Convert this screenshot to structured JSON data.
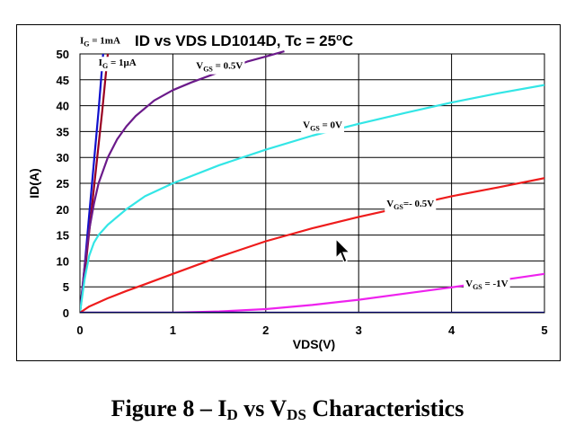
{
  "chart_data": {
    "type": "line",
    "title_parts": [
      "ID vs VDS  LD1014D, Tc = 25",
      "o",
      "C"
    ],
    "xlabel": "VDS(V)",
    "ylabel": "ID(A)",
    "xlim": [
      0,
      5
    ],
    "ylim": [
      0,
      50
    ],
    "x_ticks": [
      0,
      1,
      2,
      3,
      4,
      5
    ],
    "y_ticks": [
      0,
      5,
      10,
      15,
      20,
      25,
      30,
      35,
      40,
      45,
      50
    ],
    "grid": true,
    "series": [
      {
        "key": "ig1ma",
        "label_parts": [
          [
            "I",
            "n"
          ],
          [
            "G",
            "s"
          ],
          [
            " = 1mA",
            "n"
          ]
        ],
        "color": "#1010cc",
        "x": [
          0,
          0.05,
          0.1,
          0.15,
          0.2,
          0.25
        ],
        "y": [
          0,
          9,
          19,
          29,
          39,
          50
        ]
      },
      {
        "key": "ig1ua",
        "label_parts": [
          [
            "I",
            "n"
          ],
          [
            "G",
            "s"
          ],
          [
            " = 1μA",
            "n"
          ]
        ],
        "color": "#990022",
        "x": [
          0,
          0.06,
          0.12,
          0.18,
          0.24,
          0.3
        ],
        "y": [
          0,
          9,
          19,
          29,
          39,
          50
        ]
      },
      {
        "key": "vgs_p05",
        "label_parts": [
          [
            "V",
            "n"
          ],
          [
            "GS",
            "s"
          ],
          [
            " = 0.5V",
            "n"
          ]
        ],
        "color": "#6b1a8a",
        "x": [
          0,
          0.05,
          0.1,
          0.15,
          0.2,
          0.3,
          0.4,
          0.5,
          0.6,
          0.8,
          1.0,
          1.2,
          1.5,
          1.8,
          2.0,
          2.2
        ],
        "y": [
          0,
          9,
          16,
          21,
          25,
          30,
          33.5,
          36,
          38,
          41,
          43,
          44.5,
          46.5,
          48.5,
          49.5,
          50.5
        ]
      },
      {
        "key": "vgs_0",
        "label_parts": [
          [
            "V",
            "n"
          ],
          [
            "GS",
            "s"
          ],
          [
            " = 0V",
            "n"
          ]
        ],
        "color": "#33e6e6",
        "x": [
          0,
          0.05,
          0.1,
          0.15,
          0.2,
          0.3,
          0.4,
          0.5,
          0.7,
          1.0,
          1.5,
          2.0,
          2.5,
          3.0,
          3.5,
          4.0,
          4.5,
          5.0
        ],
        "y": [
          0,
          6.5,
          11,
          13.5,
          15,
          17,
          18.5,
          20,
          22.5,
          25,
          28.5,
          31.5,
          34.2,
          36.5,
          38.6,
          40.6,
          42.4,
          44
        ]
      },
      {
        "key": "vgs_m05",
        "label_parts": [
          [
            "V",
            "n"
          ],
          [
            "GS",
            "s"
          ],
          [
            "=- 0.5V",
            "n"
          ]
        ],
        "color": "#ee1c1c",
        "x": [
          0,
          0.05,
          0.1,
          0.2,
          0.3,
          0.5,
          0.7,
          1.0,
          1.5,
          2.0,
          2.5,
          3.0,
          3.5,
          4.0,
          4.5,
          5.0
        ],
        "y": [
          0,
          0.6,
          1.2,
          2,
          2.8,
          4.2,
          5.5,
          7.5,
          10.8,
          13.8,
          16.3,
          18.5,
          20.5,
          22.5,
          24.2,
          26
        ]
      },
      {
        "key": "vgs_m1",
        "label_parts": [
          [
            "V",
            "n"
          ],
          [
            "GS",
            "s"
          ],
          [
            " = -1V",
            "n"
          ]
        ],
        "color": "#ee22ee",
        "x": [
          0,
          1.0,
          1.5,
          2.0,
          2.5,
          3.0,
          3.5,
          4.0,
          4.5,
          5.0
        ],
        "y": [
          0,
          0,
          0.25,
          0.7,
          1.5,
          2.5,
          3.7,
          4.9,
          6.2,
          7.5
        ]
      },
      {
        "key": "baseline",
        "label_parts": [],
        "color": "#000066",
        "x": [
          0,
          5
        ],
        "y": [
          0,
          0
        ]
      }
    ],
    "annotations": [
      {
        "series": "ig1ma",
        "x": 0.0,
        "y": 52.0
      },
      {
        "series": "ig1ua",
        "x": 0.2,
        "y": 47.7
      },
      {
        "series": "vgs_p05",
        "x": 1.25,
        "y": 47.1
      },
      {
        "series": "vgs_0",
        "x": 2.4,
        "y": 35.7
      },
      {
        "series": "vgs_m05",
        "x": 3.3,
        "y": 20.5
      },
      {
        "series": "vgs_m1",
        "x": 4.15,
        "y": 5.0
      }
    ]
  },
  "caption": {
    "main": "Figure 8 – I",
    "sub1": "D",
    "mid": " vs V",
    "sub2": "DS",
    "tail": " Characteristics"
  }
}
